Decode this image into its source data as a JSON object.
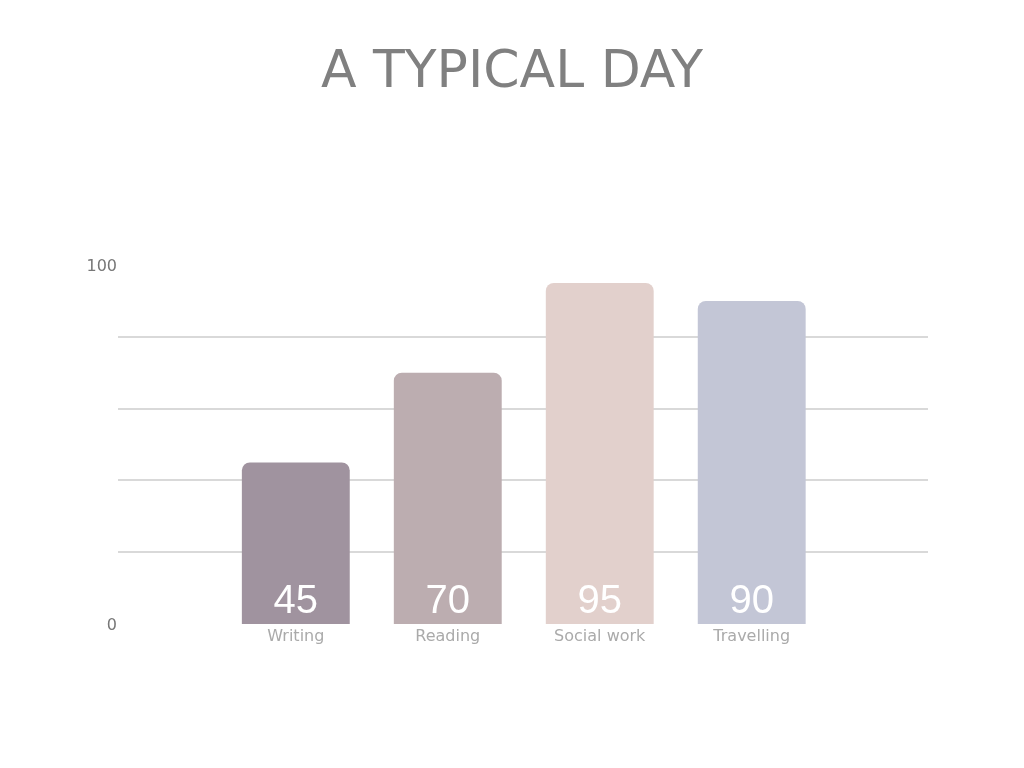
{
  "chart_data": {
    "type": "bar",
    "title": "A TYPICAL DAY",
    "categories": [
      "Writing",
      "Reading",
      "Social work",
      "Travelling"
    ],
    "values": [
      45,
      70,
      95,
      90
    ],
    "colors": [
      "#a0939f",
      "#bcadb0",
      "#e2d0cc",
      "#c3c6d6"
    ],
    "ylim": [
      0,
      100
    ],
    "yticks": [
      0,
      {
        "value": 20,
        "label": null
      },
      {
        "value": 40,
        "label": null
      },
      {
        "value": 60,
        "label": null
      },
      {
        "value": 80,
        "label": null
      },
      100
    ],
    "grid": "y",
    "data_labels": true,
    "legend": false
  }
}
